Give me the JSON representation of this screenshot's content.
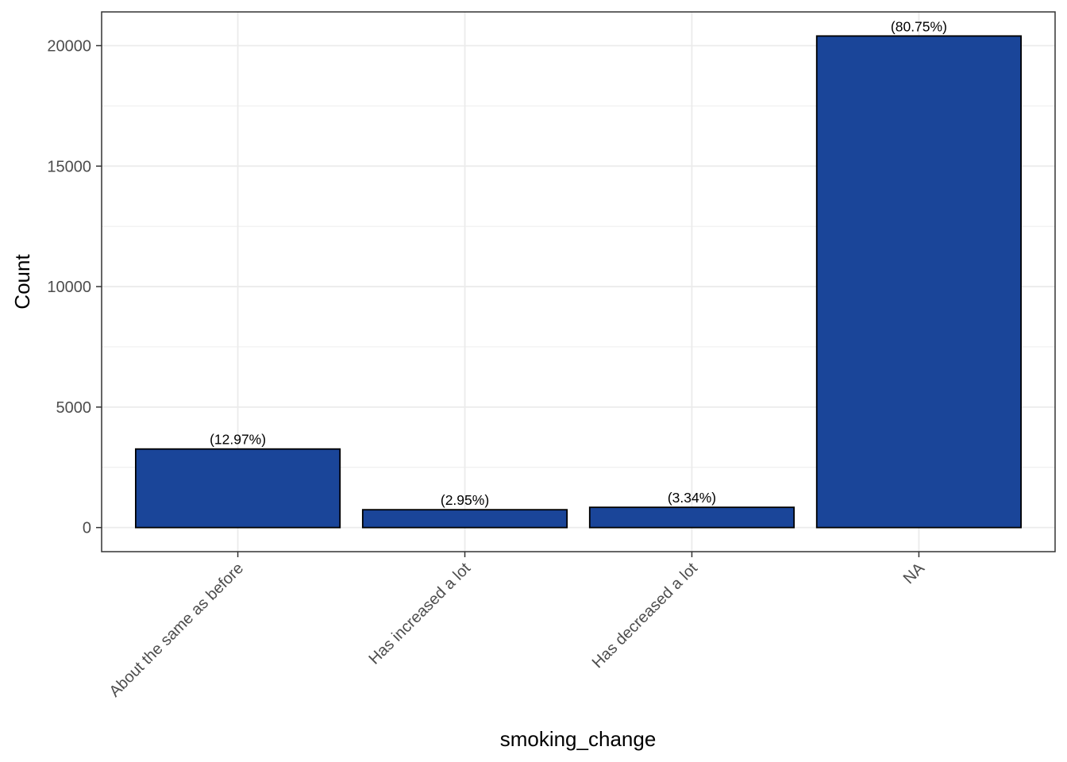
{
  "chart_data": {
    "type": "bar",
    "title": "",
    "xlabel": "smoking_change",
    "ylabel": "Count",
    "categories": [
      "About the same as before",
      "Has increased a lot",
      "Has decreased a lot",
      "NA"
    ],
    "values": [
      3260,
      740,
      840,
      20400
    ],
    "data_labels": [
      "(12.97%)",
      "(2.95%)",
      "(3.34%)",
      "(80.75%)"
    ],
    "y_ticks": [
      0,
      5000,
      10000,
      15000,
      20000
    ],
    "ylim": [
      -1000,
      21400
    ],
    "grid": true,
    "legend": "none",
    "colors": {
      "bar_fill": "#1a4599",
      "bar_outline": "#000000",
      "grid": "#ebebeb",
      "panel_border": "#333333",
      "tick_text": "#4d4d4d"
    }
  }
}
